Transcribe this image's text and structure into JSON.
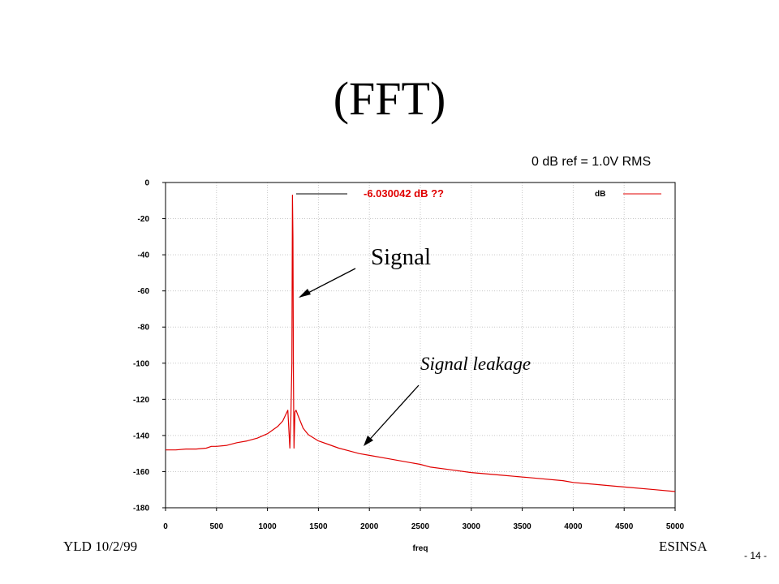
{
  "slide": {
    "title": "(FFT)",
    "reference_note": "0 dB ref = 1.0V RMS",
    "footer_left": "YLD 10/2/99",
    "footer_right": "ESINSA",
    "page_number": "- 14 -"
  },
  "chart_data": {
    "type": "line",
    "title": "",
    "xlabel": "freq",
    "ylabel": "",
    "xlim": [
      0,
      5000
    ],
    "ylim": [
      -180,
      0
    ],
    "x_ticks": [
      "0",
      "500",
      "1000",
      "1500",
      "2000",
      "2500",
      "3000",
      "3500",
      "4000",
      "4500",
      "5000"
    ],
    "y_ticks": [
      "0",
      "-20",
      "-40",
      "-60",
      "-80",
      "-100",
      "-120",
      "-140",
      "-160",
      "-180"
    ],
    "grid": true,
    "legend": {
      "position": "top-right",
      "entries": [
        "dB"
      ]
    },
    "peak_label": "-6.030042 dB ??",
    "annotations": [
      {
        "text": "Signal",
        "points_to": {
          "x": 1300,
          "y": -65
        }
      },
      {
        "text": "Signal leakage",
        "points_to": {
          "x": 1950,
          "y": -147
        }
      }
    ],
    "series": [
      {
        "name": "dB",
        "color": "#e00000",
        "x": [
          0,
          100,
          200,
          300,
          400,
          450,
          500,
          600,
          700,
          800,
          900,
          1000,
          1100,
          1150,
          1200,
          1220,
          1230,
          1240,
          1245,
          1250,
          1255,
          1260,
          1270,
          1280,
          1300,
          1350,
          1400,
          1500,
          1600,
          1700,
          1800,
          1900,
          2000,
          2200,
          2400,
          2500,
          2600,
          2800,
          3000,
          3300,
          3600,
          3900,
          4000,
          4200,
          4500,
          4800,
          5000
        ],
        "y": [
          -148,
          -148,
          -147.5,
          -147.5,
          -147,
          -146,
          -146,
          -145.5,
          -144,
          -143,
          -141.5,
          -139,
          -135,
          -132,
          -126,
          -147,
          -129,
          -100,
          -7,
          -30,
          -107,
          -147,
          -127,
          -126,
          -129,
          -136,
          -139.5,
          -143,
          -145,
          -147,
          -148.5,
          -150,
          -151,
          -153,
          -155,
          -156,
          -157.5,
          -159,
          -160.5,
          -162,
          -163.5,
          -165,
          -166,
          -167,
          -168.5,
          -170,
          -171
        ]
      }
    ]
  }
}
